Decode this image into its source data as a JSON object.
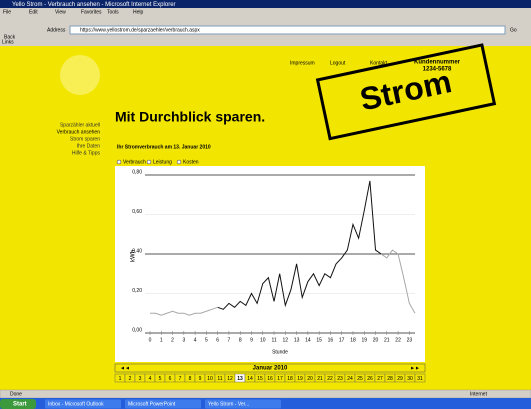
{
  "browser": {
    "title": "Yello Strom - Verbrauch ansehen - Microsoft Internet Explorer",
    "menu": [
      "File",
      "Edit",
      "View",
      "Favorites",
      "Tools",
      "Help"
    ],
    "back": "Back",
    "address_label": "Address",
    "address": "https://www.yellostrom.de/sparzaehler/verbrauch.aspx",
    "go": "Go",
    "links": "Links",
    "status": "Done",
    "zone": "Internet"
  },
  "taskbar": {
    "start": "Start",
    "items": [
      "Inbox - Microsoft Outlook",
      "Microsoft PowerPoint",
      "Yello Strom - Ver..."
    ]
  },
  "page": {
    "top_links": [
      "Impressum",
      "Logout",
      "Kontakt"
    ],
    "customer_label": "Kundennummer",
    "customer_number": "1234-5678",
    "nav": [
      "Sparzähler aktuell",
      "Verbrauch ansehen",
      "Strom sparen",
      "Ihre Daten",
      "Hilfe & Tipps"
    ],
    "headline": "Mit Durchblick sparen.",
    "stamp": "Strom",
    "subtitle": "Ihr Stromverbrauch am 13. Januar 2010",
    "options": [
      "Verbrauch",
      "Leistung",
      "Kosten"
    ],
    "month": "Januar 2010",
    "prev": "◄◄",
    "next": "►►",
    "days": [
      1,
      2,
      3,
      4,
      5,
      6,
      7,
      8,
      9,
      10,
      11,
      12,
      13,
      14,
      15,
      16,
      17,
      18,
      19,
      20,
      21,
      22,
      23,
      24,
      25,
      26,
      27,
      28,
      29,
      30,
      31
    ],
    "selected_day": 13
  },
  "chart": {
    "type": "line",
    "y_label": "kWh",
    "x_label": "Stunde",
    "x": [
      0,
      0.5,
      1,
      1.5,
      2,
      2.5,
      3,
      3.5,
      4,
      4.5,
      5,
      5.5,
      6,
      6.5,
      7,
      7.5,
      8,
      8.5,
      9,
      9.5,
      10,
      10.5,
      11,
      11.5,
      12,
      12.5,
      13,
      13.5,
      14,
      14.5,
      15,
      15.5,
      16,
      16.5,
      17,
      17.5,
      18,
      18.5,
      19,
      19.5,
      20,
      20.5,
      21,
      21.5,
      22,
      22.5,
      23,
      23.5
    ],
    "xlim": [
      0,
      23.5
    ],
    "xticks": [
      0,
      1,
      2,
      3,
      4,
      5,
      6,
      7,
      8,
      9,
      10,
      11,
      12,
      13,
      14,
      15,
      16,
      17,
      18,
      19,
      20,
      21,
      22,
      23
    ],
    "ylim": [
      0,
      0.8
    ],
    "yticks": [
      {
        "value": 0,
        "label": "0,00"
      },
      {
        "value": 0.2,
        "label": "0,20"
      },
      {
        "value": 0.4,
        "label": "0,40"
      },
      {
        "value": 0.6,
        "label": "0,60"
      },
      {
        "value": 0.8,
        "label": "0,80"
      }
    ],
    "series": [
      {
        "color": "#111111",
        "values": [
          null,
          null,
          null,
          null,
          null,
          null,
          null,
          null,
          null,
          null,
          null,
          null,
          0.13,
          0.12,
          0.15,
          0.13,
          0.16,
          0.14,
          0.2,
          0.15,
          0.25,
          0.28,
          0.16,
          0.3,
          0.14,
          0.22,
          0.35,
          0.18,
          0.26,
          0.3,
          0.24,
          0.3,
          0.28,
          0.35,
          0.38,
          0.42,
          0.55,
          0.48,
          0.62,
          0.77,
          0.42,
          0.4,
          null,
          null,
          null,
          null,
          null,
          null
        ]
      },
      {
        "color": "#a8a8a8",
        "values": [
          0.1,
          0.1,
          0.09,
          0.1,
          0.11,
          0.1,
          0.1,
          0.09,
          0.1,
          0.1,
          0.11,
          0.12,
          0.13,
          null,
          null,
          null,
          null,
          null,
          null,
          null,
          null,
          null,
          null,
          null,
          null,
          null,
          null,
          null,
          null,
          null,
          null,
          null,
          null,
          null,
          null,
          null,
          null,
          null,
          null,
          null,
          null,
          0.4,
          0.38,
          0.42,
          0.4,
          0.28,
          0.15,
          0.1
        ]
      }
    ]
  }
}
